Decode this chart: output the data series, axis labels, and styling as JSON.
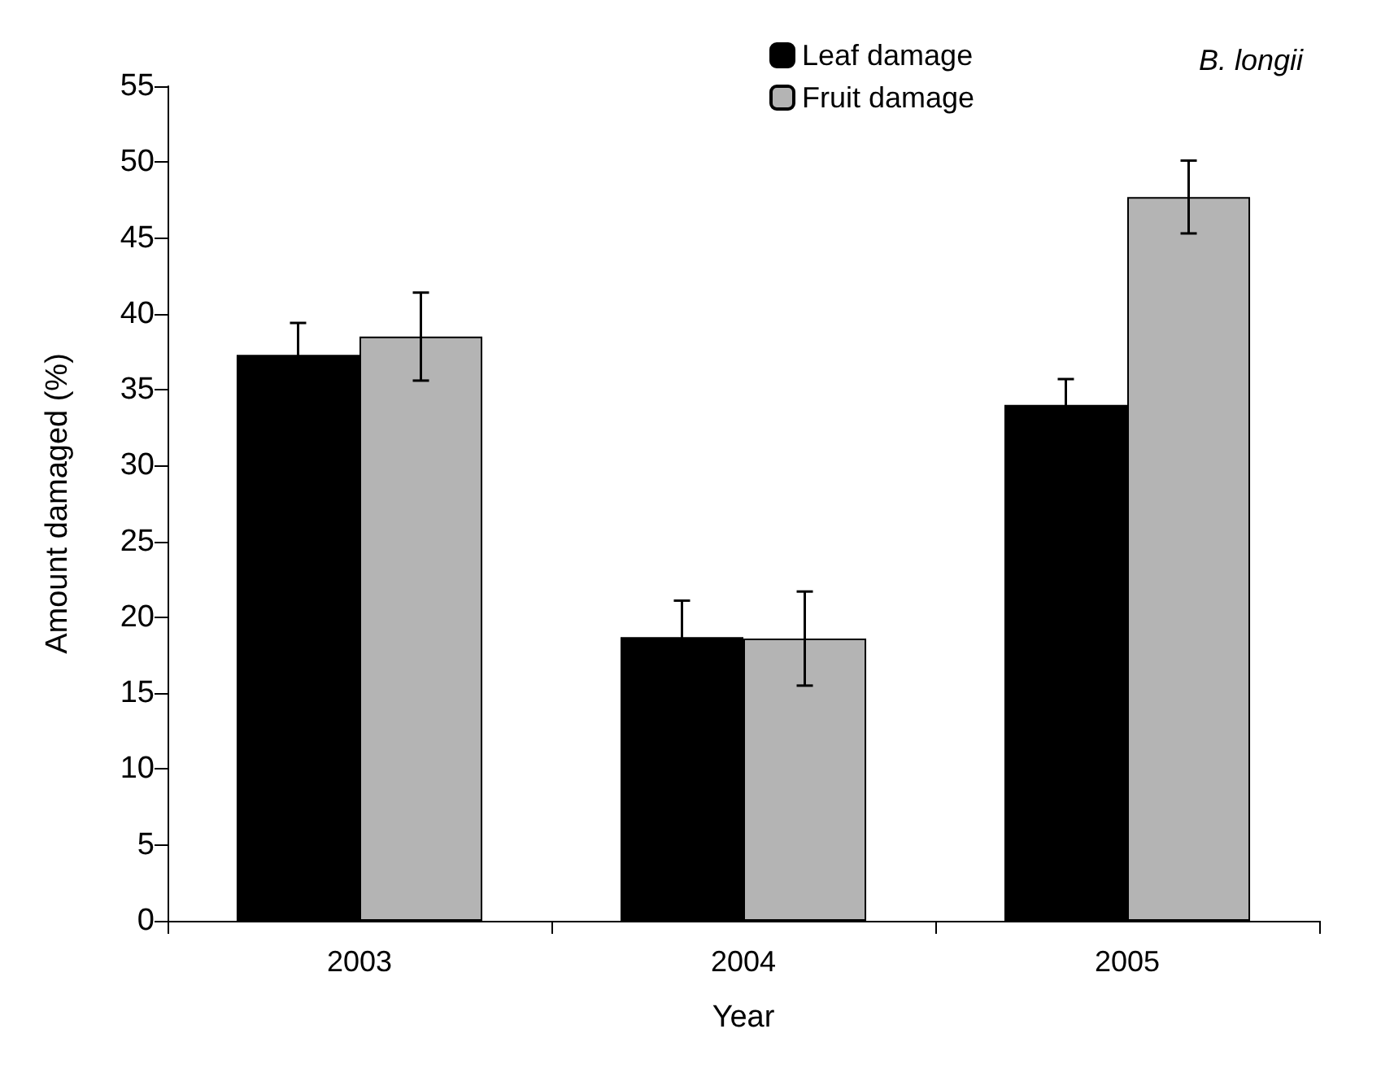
{
  "chart_data": {
    "type": "bar",
    "xlabel": "Year",
    "ylabel": "Amount damaged (%)",
    "annotations": [
      "B. longii"
    ],
    "categories": [
      "2003",
      "2004",
      "2005"
    ],
    "series": [
      {
        "name": "Leaf damage",
        "color": "#000000",
        "values": [
          37.3,
          18.7,
          34.0
        ],
        "errors": [
          2.1,
          2.4,
          1.7
        ]
      },
      {
        "name": "Fruit damage",
        "color": "#b4b4b4",
        "values": [
          38.5,
          18.6,
          47.7
        ],
        "errors": [
          2.9,
          3.1,
          2.4
        ]
      }
    ],
    "ylim": [
      0,
      55
    ],
    "yticks": [
      0,
      5,
      10,
      15,
      20,
      25,
      30,
      35,
      40,
      45,
      50,
      55
    ],
    "grid": false,
    "legend": "top"
  }
}
